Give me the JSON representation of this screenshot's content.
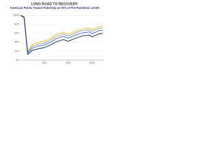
{
  "chart_data": {
    "type": "line",
    "title": "LONG ROAD TO RECOVERY:",
    "subtitle": "American Public Transit Ridership at 70% of Pre-Pandemic Levels",
    "xlim": [
      2020,
      2023.5
    ],
    "xticks": [
      2021,
      2022,
      2023
    ],
    "ylim": [
      0,
      110
    ],
    "yticks": [
      {
        "value": 0,
        "label": "0%"
      },
      {
        "value": 20,
        "label": "20%"
      },
      {
        "value": 40,
        "label": "40%"
      },
      {
        "value": 60,
        "label": "60%"
      },
      {
        "value": 80,
        "label": "80%"
      },
      {
        "value": 100,
        "label": "100%"
      }
    ],
    "grid": true,
    "x": [
      2020,
      2020.15,
      2020.3,
      2020.5,
      2020.8,
      2021,
      2021.3,
      2021.5,
      2021.8,
      2022,
      2022.3,
      2022.6,
      2022.9,
      2023,
      2023.3,
      2023.45
    ],
    "series": [
      {
        "color": "#f2c230",
        "values": [
          100,
          98,
          20,
          35,
          40,
          42,
          50,
          58,
          62,
          58,
          65,
          70,
          72,
          68,
          75,
          76
        ]
      },
      {
        "color": "#a0a4ac",
        "values": [
          100,
          97,
          18,
          31,
          36,
          38,
          46,
          53,
          58,
          54,
          61,
          66,
          68,
          64,
          71,
          72
        ]
      },
      {
        "color": "#4a6fd0",
        "values": [
          100,
          96,
          16,
          27,
          32,
          34,
          41,
          48,
          53,
          49,
          56,
          61,
          63,
          59,
          66,
          67
        ]
      },
      {
        "color": "#1e2f5e",
        "values": [
          100,
          95,
          13,
          22,
          26,
          28,
          35,
          41,
          46,
          42,
          49,
          54,
          56,
          52,
          59,
          60
        ]
      }
    ]
  }
}
